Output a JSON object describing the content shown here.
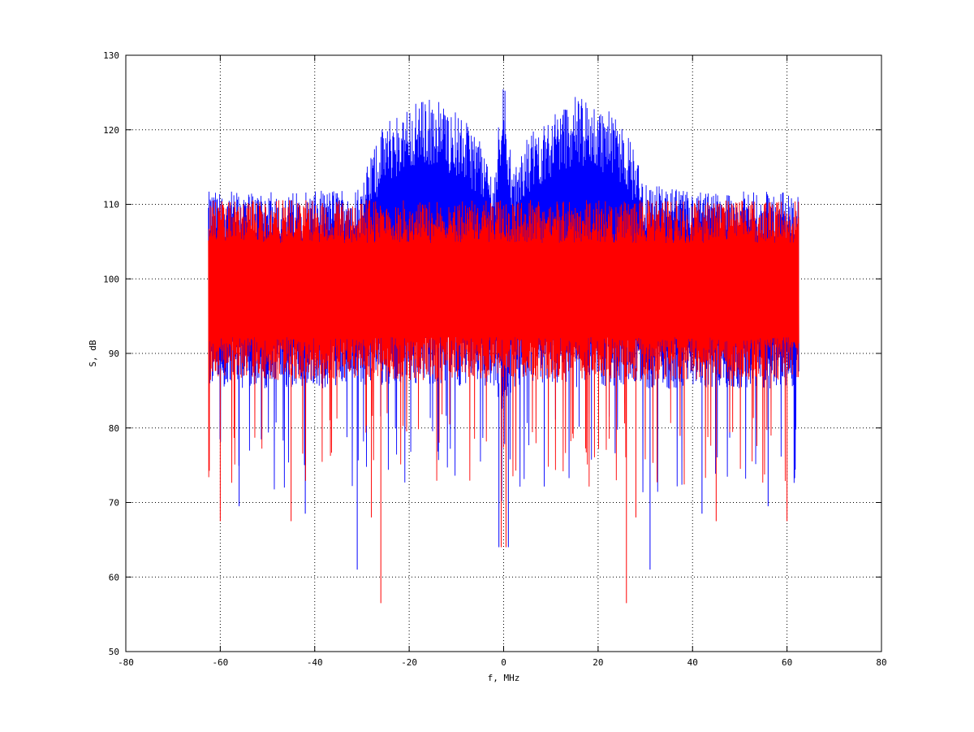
{
  "chart_data": {
    "type": "line",
    "title": "",
    "xlabel": "f, MHz",
    "ylabel": "S, dB",
    "xlim": [
      -80,
      80
    ],
    "ylim": [
      50,
      130
    ],
    "xticks": [
      -80,
      -60,
      -40,
      -20,
      0,
      20,
      40,
      60,
      80
    ],
    "yticks": [
      50,
      60,
      70,
      80,
      90,
      100,
      110,
      120,
      130
    ],
    "xtick_labels": [
      "-80",
      "-60",
      "-40",
      "-20",
      "0",
      "20",
      "40",
      "60",
      "80"
    ],
    "ytick_labels": [
      "50",
      "60",
      "70",
      "80",
      "90",
      "100",
      "110",
      "120",
      "130"
    ],
    "grid": true,
    "legend": "none",
    "series": [
      {
        "color": "#0000ff",
        "x_range": [
          -62.5,
          62.5
        ],
        "points": 2000,
        "envelope": {
          "x": [
            -62.5,
            -60,
            -50,
            -40,
            -30,
            -28,
            -25,
            -20,
            -15,
            -10,
            -5,
            -2,
            0,
            2,
            5,
            10,
            15,
            20,
            25,
            28,
            30,
            40,
            50,
            60,
            62.5
          ],
          "upper": [
            110,
            110,
            110,
            110,
            111,
            115,
            119,
            121,
            122,
            120,
            117,
            112,
            126,
            112,
            117,
            120,
            122,
            121,
            119,
            115,
            111,
            110,
            110,
            110,
            110
          ],
          "lower": [
            87,
            87,
            87,
            87,
            87,
            88,
            88,
            88,
            88,
            88,
            88,
            87,
            85,
            87,
            88,
            88,
            88,
            88,
            88,
            88,
            87,
            87,
            87,
            87,
            87
          ],
          "notable_minima": [
            [
              -31,
              61
            ],
            [
              31,
              61
            ],
            [
              -56,
              69.5
            ],
            [
              56,
              69.5
            ],
            [
              -42,
              68.5
            ],
            [
              42,
              68.5
            ],
            [
              -1,
              64
            ],
            [
              1,
              64
            ]
          ]
        }
      },
      {
        "color": "#ff0000",
        "x_range": [
          -62.5,
          62.5
        ],
        "points": 2000,
        "envelope": {
          "x": [
            -62.5,
            -60,
            -50,
            -40,
            -30,
            -20,
            -10,
            0,
            10,
            20,
            30,
            40,
            50,
            60,
            62.5
          ],
          "upper": [
            109,
            109,
            109,
            109,
            109,
            109,
            109,
            109,
            109,
            109,
            109,
            109,
            109,
            109,
            109
          ],
          "lower": [
            88,
            88,
            88,
            88,
            88,
            88,
            88,
            88,
            88,
            88,
            88,
            88,
            88,
            88,
            88
          ],
          "notable_minima": [
            [
              -26,
              56.5
            ],
            [
              26,
              56.5
            ],
            [
              -60,
              67.5
            ],
            [
              60,
              67.5
            ],
            [
              -45,
              67.5
            ],
            [
              45,
              67.5
            ],
            [
              -0.5,
              64
            ],
            [
              0.5,
              64
            ],
            [
              -28,
              68
            ],
            [
              28,
              68
            ]
          ]
        }
      }
    ]
  }
}
